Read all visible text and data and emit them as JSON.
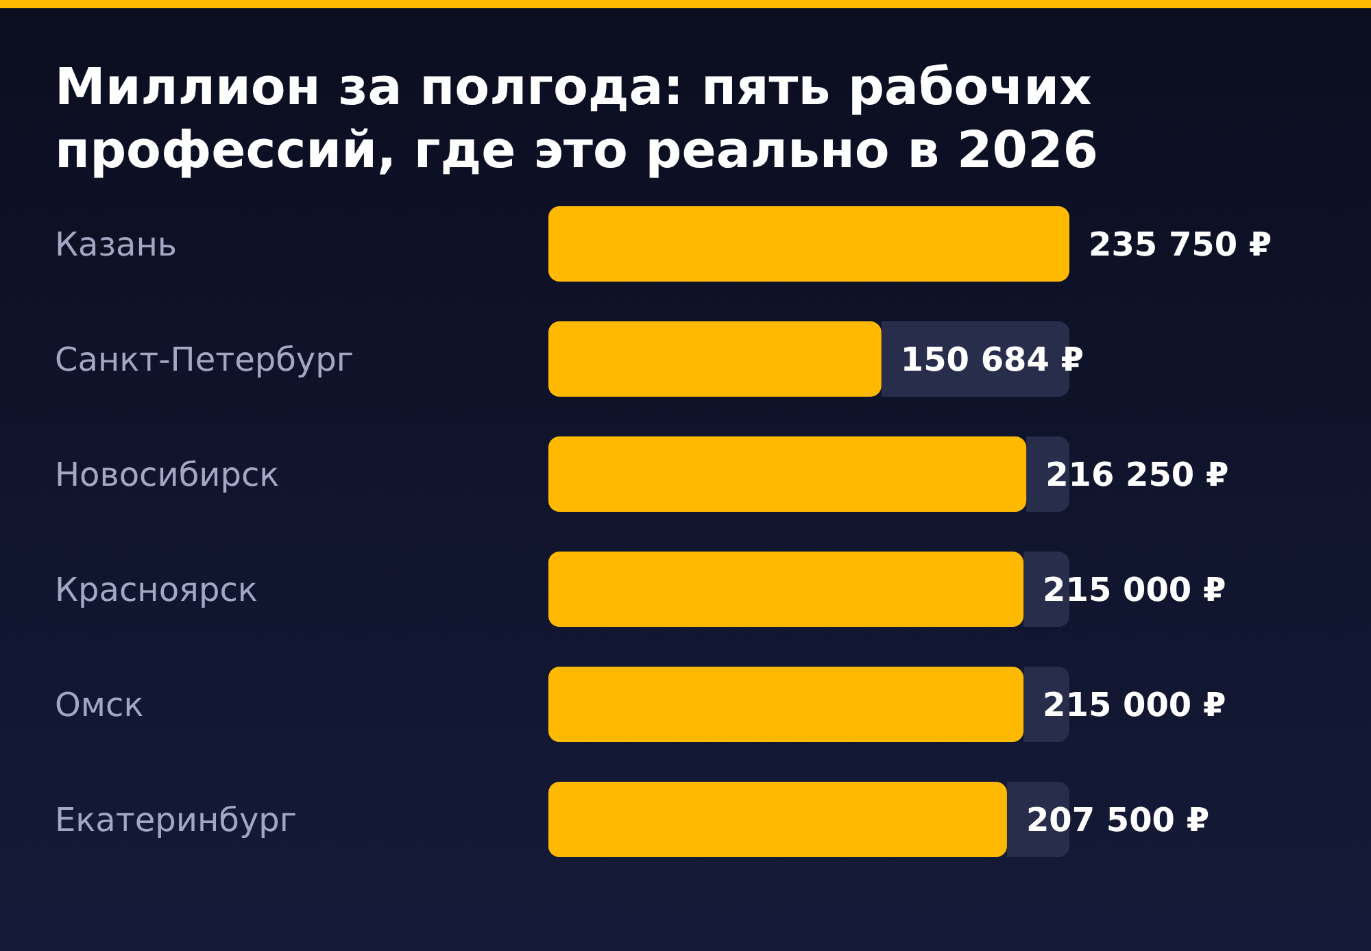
{
  "chart_data": {
    "type": "bar",
    "orientation": "horizontal",
    "title": "Миллион за полгода: пять рабочих профессий, где это реально в 2026",
    "categories": [
      "Казань",
      "Санкт-Петербург",
      "Новосибирск",
      "Красноярск",
      "Омск",
      "Екатеринбург"
    ],
    "values": [
      235750,
      150684,
      216250,
      215000,
      215000,
      207500
    ],
    "value_labels": [
      "235 750 ₽",
      "150 684 ₽",
      "216 250 ₽",
      "215 000 ₽",
      "215 000 ₽",
      "207 500 ₽"
    ],
    "color": "#ffb900"
  }
}
